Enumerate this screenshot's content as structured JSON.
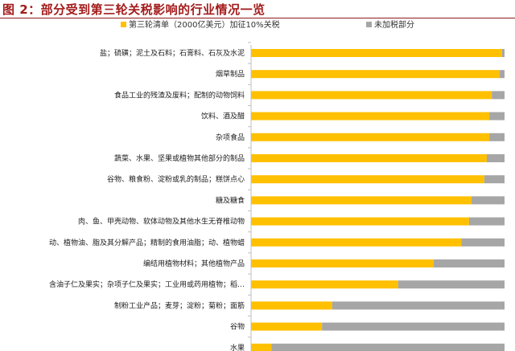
{
  "header": {
    "title": "图 2：部分受到第三轮关税影响的行业情况一览"
  },
  "chart_data": {
    "type": "bar",
    "orientation": "horizontal",
    "stacked": "percent",
    "title": "",
    "legend_position": "top",
    "grid": false,
    "xlim": [
      0,
      100
    ],
    "categories": [
      "盐；硫磺；泥土及石料；石膏料、石灰及水泥",
      "烟草制品",
      "食品工业的残渣及废料；配制的动物饲料",
      "饮料、酒及醋",
      "杂项食品",
      "蔬菜、水果、坚果或植物其他部分的制品",
      "谷物、粮食粉、淀粉或乳的制品；糕饼点心",
      "糖及糖食",
      "肉、鱼、甲壳动物、软体动物及其他水生无脊椎动物",
      "动、植物油、脂及其分解产品；精制的食用油脂；动、植物蜡",
      "编结用植物材料；其他植物产品",
      "含油子仁及果实；杂项子仁及果实；工业用或药用植物；稻…",
      "制粉工业产品；麦芽；淀粉；菊粉；面筋",
      "谷物",
      "水果"
    ],
    "series": [
      {
        "name": "第三轮清单（2000亿美元）加征10%关税",
        "color": "#FFC000",
        "values": [
          99,
          98,
          95,
          94,
          94,
          93,
          92,
          87,
          86,
          83,
          72,
          58,
          32,
          28,
          8
        ]
      },
      {
        "name": "未加税部分",
        "color": "#A6A6A6",
        "values": [
          1,
          2,
          5,
          6,
          6,
          7,
          8,
          13,
          14,
          17,
          28,
          42,
          68,
          72,
          92
        ]
      }
    ]
  }
}
